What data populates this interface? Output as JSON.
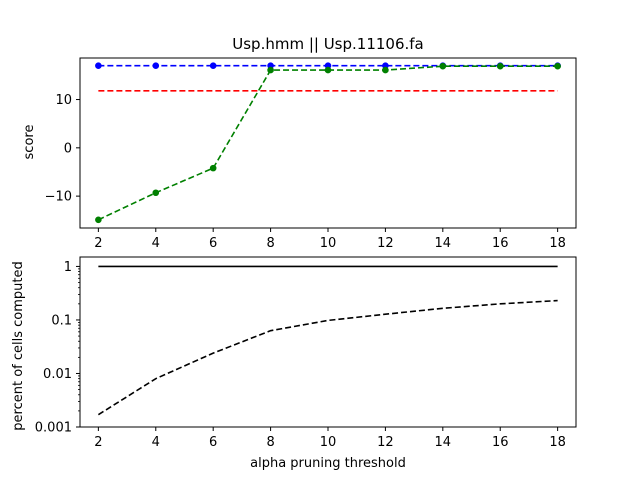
{
  "chart_data": [
    {
      "type": "line",
      "title": "Usp.hmm || Usp.11106.fa",
      "xlabel": "",
      "ylabel": "score",
      "xlim": [
        1.36,
        18.64
      ],
      "ylim": [
        -16.6,
        18.6
      ],
      "x_ticks": [
        2,
        4,
        6,
        8,
        10,
        12,
        14,
        16,
        18
      ],
      "y_ticks": [
        -10,
        0,
        10
      ],
      "grid": false,
      "series": [
        {
          "color": "#0000ff",
          "style": "dashed-with-markers",
          "x": [
            2,
            4,
            6,
            8,
            10,
            12,
            14,
            16,
            18
          ],
          "values": [
            17.0,
            17.0,
            17.0,
            17.0,
            17.0,
            17.0,
            17.0,
            17.0,
            17.0
          ]
        },
        {
          "color": "#ff0000",
          "style": "dashed",
          "x": [
            2,
            18
          ],
          "values": [
            11.8,
            11.8
          ]
        },
        {
          "color": "#008000",
          "style": "dashed-with-markers",
          "x": [
            2,
            4,
            6,
            8,
            10,
            12,
            14,
            16,
            18
          ],
          "values": [
            -14.9,
            -9.3,
            -4.2,
            16.1,
            16.1,
            16.1,
            16.9,
            16.9,
            16.9
          ]
        }
      ]
    },
    {
      "type": "line",
      "title": "",
      "xlabel": "alpha pruning threshold",
      "ylabel": "percent of cells computed",
      "xlim": [
        1.36,
        18.64
      ],
      "ylim": [
        0.001,
        1.5
      ],
      "y_scale": "log",
      "x_ticks": [
        2,
        4,
        6,
        8,
        10,
        12,
        14,
        16,
        18
      ],
      "y_ticks": [
        0.001,
        0.01,
        0.1,
        1
      ],
      "y_tick_labels": [
        "0.001",
        "0.01",
        "0.1",
        "1"
      ],
      "grid": false,
      "series": [
        {
          "color": "#000000",
          "style": "solid",
          "x": [
            2,
            18
          ],
          "values": [
            1.0,
            1.0
          ]
        },
        {
          "color": "#000000",
          "style": "dashed",
          "x": [
            2,
            4,
            6,
            8,
            10,
            12,
            14,
            16,
            18
          ],
          "values": [
            0.0017,
            0.008,
            0.024,
            0.063,
            0.098,
            0.128,
            0.165,
            0.2,
            0.23
          ]
        }
      ]
    }
  ]
}
